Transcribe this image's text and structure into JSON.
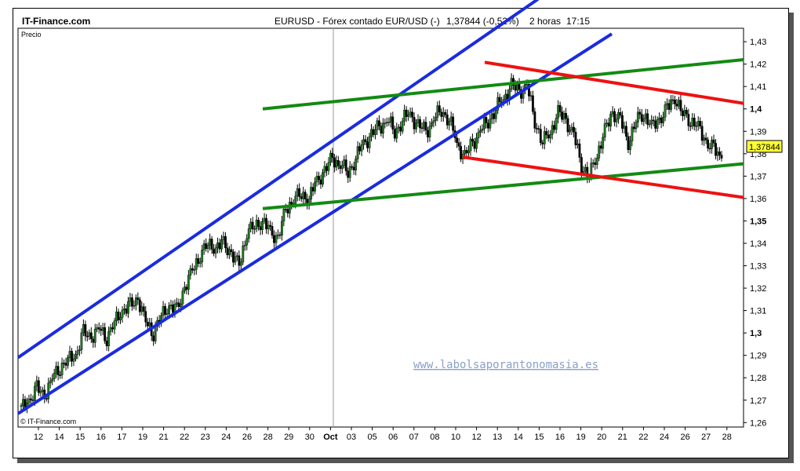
{
  "header": {
    "site": "IT-Finance.com",
    "instrument": "EURUSD - Fórex contado EUR/USD (-)",
    "price": "1,37844 (-0,52%)",
    "interval": "2 horas",
    "time": "17:15"
  },
  "panel_label": "Precio",
  "copyright": "© IT-Finance.com",
  "watermark": "www.labolsaporantonomasia.es",
  "last_price_tag": "1,37844",
  "colors": {
    "channel_up": "#1a2be0",
    "green_lines": "#138a13",
    "red_lines": "#ee1111",
    "candles": "#000000",
    "price_tag_bg": "#ffff33",
    "watermark": "#8aa0c8"
  },
  "chart_data": {
    "type": "candlestick",
    "title": "EURUSD - Fórex contado EUR/USD (-)",
    "ylabel": "Precio",
    "ylim": [
      1.258,
      1.436
    ],
    "y_ticks": [
      "1,43",
      "1,42",
      "1,41",
      "1,4",
      "1,39",
      "1,38",
      "1,37",
      "1,36",
      "1,35",
      "1,34",
      "1,33",
      "1,32",
      "1,31",
      "1,3",
      "1,29",
      "1,28",
      "1,27",
      "1,26"
    ],
    "y_tick_values": [
      1.43,
      1.42,
      1.41,
      1.4,
      1.39,
      1.38,
      1.37,
      1.36,
      1.35,
      1.34,
      1.33,
      1.32,
      1.31,
      1.3,
      1.29,
      1.28,
      1.27,
      1.26
    ],
    "x_ticks": [
      "12",
      "14",
      "15",
      "16",
      "17",
      "19",
      "21",
      "22",
      "23",
      "24",
      "26",
      "28",
      "29",
      "30",
      "Oct",
      "03",
      "05",
      "06",
      "07",
      "08",
      "10",
      "12",
      "13",
      "14",
      "15",
      "16",
      "19",
      "20",
      "21",
      "22",
      "24",
      "26",
      "27",
      "28"
    ],
    "last_price": 1.37844,
    "change_pct": -0.52,
    "close_series": [
      1.266,
      1.27,
      1.275,
      1.272,
      1.28,
      1.285,
      1.288,
      1.29,
      1.3,
      1.298,
      1.302,
      1.298,
      1.305,
      1.31,
      1.312,
      1.315,
      1.305,
      1.3,
      1.308,
      1.312,
      1.31,
      1.32,
      1.328,
      1.335,
      1.34,
      1.338,
      1.34,
      1.335,
      1.33,
      1.345,
      1.348,
      1.35,
      1.345,
      1.342,
      1.355,
      1.36,
      1.362,
      1.36,
      1.368,
      1.372,
      1.378,
      1.375,
      1.372,
      1.378,
      1.385,
      1.388,
      1.392,
      1.395,
      1.39,
      1.395,
      1.398,
      1.392,
      1.39,
      1.395,
      1.4,
      1.395,
      1.385,
      1.378,
      1.385,
      1.39,
      1.395,
      1.4,
      1.405,
      1.41,
      1.408,
      1.41,
      1.395,
      1.385,
      1.39,
      1.398,
      1.395,
      1.388,
      1.375,
      1.37,
      1.38,
      1.39,
      1.398,
      1.395,
      1.385,
      1.395,
      1.398,
      1.392,
      1.395,
      1.4,
      1.405,
      1.398,
      1.395,
      1.392,
      1.385,
      1.382,
      1.378
    ],
    "trendlines": [
      {
        "name": "channel-upper",
        "color": "blue",
        "from": {
          "x": "08-10",
          "y": 1.289
        },
        "to": {
          "x": "10-15",
          "y": 1.449
        }
      },
      {
        "name": "channel-lower",
        "color": "blue",
        "from": {
          "x": "08-10",
          "y": 1.264
        },
        "to": {
          "x": "10-17",
          "y": 1.4335
        }
      },
      {
        "name": "green-upper",
        "color": "green",
        "from": {
          "x": "08-29",
          "y": 1.4
        },
        "to": {
          "x": "10-28",
          "y": 1.422
        }
      },
      {
        "name": "green-lower",
        "color": "green",
        "from": {
          "x": "08-29",
          "y": 1.3555
        },
        "to": {
          "x": "10-28",
          "y": 1.3755
        }
      },
      {
        "name": "red-upper",
        "color": "red",
        "from": {
          "x": "10-12",
          "y": 1.4208
        },
        "to": {
          "x": "10-28",
          "y": 1.4025
        }
      },
      {
        "name": "red-lower",
        "color": "red",
        "from": {
          "x": "10-10",
          "y": 1.3785
        },
        "to": {
          "x": "10-28",
          "y": 1.3605
        }
      }
    ]
  }
}
